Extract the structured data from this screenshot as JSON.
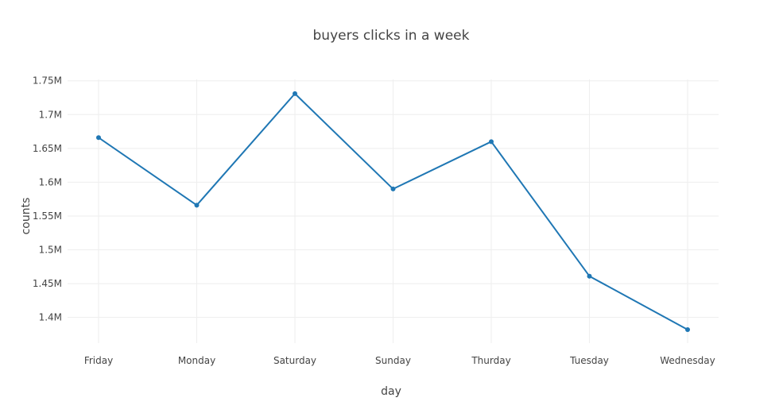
{
  "chart_data": {
    "type": "line",
    "title": "buyers clicks in a week",
    "xlabel": "day",
    "ylabel": "counts",
    "categories": [
      "Friday",
      "Monday",
      "Saturday",
      "Sunday",
      "Thurday",
      "Tuesday",
      "Wednesday"
    ],
    "series": [
      {
        "values": [
          1666000,
          1566000,
          1731000,
          1590000,
          1660000,
          1461000,
          1382000
        ]
      }
    ],
    "ylim": [
      1362000,
      1752000
    ],
    "yticks": [
      1400000,
      1450000,
      1500000,
      1550000,
      1600000,
      1650000,
      1700000,
      1750000
    ],
    "ytick_labels": [
      "1.4M",
      "1.45M",
      "1.5M",
      "1.55M",
      "1.6M",
      "1.65M",
      "1.7M",
      "1.75M"
    ],
    "grid": true,
    "colors": {
      "line": "#1f77b4",
      "grid": "#eeeeee",
      "text": "#444444"
    }
  }
}
